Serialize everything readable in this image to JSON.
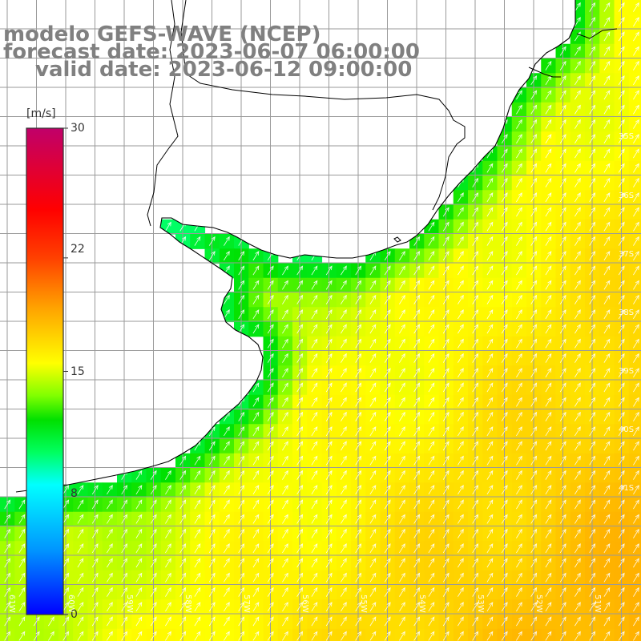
{
  "title": {
    "line1": "modelo GEFS-WAVE (NCEP)",
    "line2": "forecast date: 2023-06-07 06:00:00",
    "line3": "valid date: 2023-06-12 09:00:00"
  },
  "colorbar": {
    "unit": "[m/s]",
    "ticks": [
      {
        "label": "30",
        "value": 30
      },
      {
        "label": "22",
        "value": 22
      },
      {
        "label": "15",
        "value": 15
      },
      {
        "label": "8",
        "value": 8
      },
      {
        "label": "0",
        "value": 0
      }
    ],
    "colors": [
      "#0000ff",
      "#00bfff",
      "#00ffff",
      "#00ff60",
      "#00e000",
      "#80ff00",
      "#ffff00",
      "#ffa000",
      "#ff4000",
      "#ff0000",
      "#c0006a"
    ]
  },
  "map": {
    "lon_range": [
      -62.2,
      -51.2
    ],
    "lat_range": [
      -41.3,
      -30.5
    ],
    "land_color": "#ffffff",
    "coast_color": "#000000",
    "grid_color": "#9a9a9a",
    "arrow_color": "#ffffff",
    "lat_labels": [
      "35S",
      "36S",
      "37S",
      "38S",
      "39S",
      "40S",
      "41S"
    ],
    "lon_labels": [
      "61W",
      "60W",
      "59W",
      "58W",
      "57W",
      "56W",
      "55W",
      "54W",
      "53W",
      "52W",
      "51W"
    ],
    "wind_direction": "toward NE",
    "wind_speed_range_ms": [
      8,
      20
    ]
  }
}
